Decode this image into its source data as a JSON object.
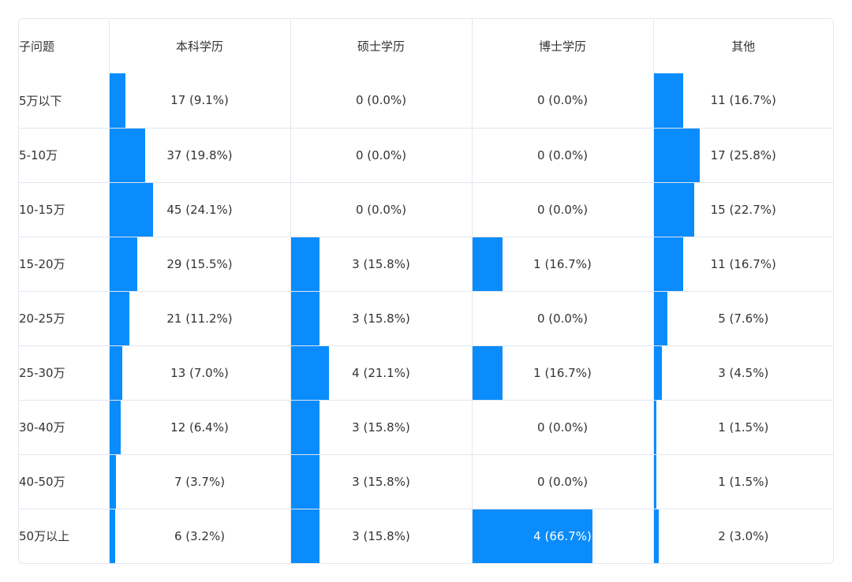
{
  "chart_data": {
    "type": "table",
    "header": {
      "first": "子问题",
      "columns": [
        "本科学历",
        "硕士学历",
        "博士学历",
        "其他"
      ]
    },
    "bar_color": "#0a8cfc",
    "rows": [
      {
        "label": "5万以下",
        "cells": [
          {
            "count": 17,
            "pct": 9.1,
            "text": "17 (9.1%)"
          },
          {
            "count": 0,
            "pct": 0.0,
            "text": "0 (0.0%)"
          },
          {
            "count": 0,
            "pct": 0.0,
            "text": "0 (0.0%)"
          },
          {
            "count": 11,
            "pct": 16.7,
            "text": "11 (16.7%)"
          }
        ]
      },
      {
        "label": "5-10万",
        "cells": [
          {
            "count": 37,
            "pct": 19.8,
            "text": "37 (19.8%)"
          },
          {
            "count": 0,
            "pct": 0.0,
            "text": "0 (0.0%)"
          },
          {
            "count": 0,
            "pct": 0.0,
            "text": "0 (0.0%)"
          },
          {
            "count": 17,
            "pct": 25.8,
            "text": "17 (25.8%)"
          }
        ]
      },
      {
        "label": "10-15万",
        "cells": [
          {
            "count": 45,
            "pct": 24.1,
            "text": "45 (24.1%)"
          },
          {
            "count": 0,
            "pct": 0.0,
            "text": "0 (0.0%)"
          },
          {
            "count": 0,
            "pct": 0.0,
            "text": "0 (0.0%)"
          },
          {
            "count": 15,
            "pct": 22.7,
            "text": "15 (22.7%)"
          }
        ]
      },
      {
        "label": "15-20万",
        "cells": [
          {
            "count": 29,
            "pct": 15.5,
            "text": "29 (15.5%)"
          },
          {
            "count": 3,
            "pct": 15.8,
            "text": "3 (15.8%)"
          },
          {
            "count": 1,
            "pct": 16.7,
            "text": "1 (16.7%)"
          },
          {
            "count": 11,
            "pct": 16.7,
            "text": "11 (16.7%)"
          }
        ]
      },
      {
        "label": "20-25万",
        "cells": [
          {
            "count": 21,
            "pct": 11.2,
            "text": "21 (11.2%)"
          },
          {
            "count": 3,
            "pct": 15.8,
            "text": "3 (15.8%)"
          },
          {
            "count": 0,
            "pct": 0.0,
            "text": "0 (0.0%)"
          },
          {
            "count": 5,
            "pct": 7.6,
            "text": "5 (7.6%)"
          }
        ]
      },
      {
        "label": "25-30万",
        "cells": [
          {
            "count": 13,
            "pct": 7.0,
            "text": "13 (7.0%)"
          },
          {
            "count": 4,
            "pct": 21.1,
            "text": "4 (21.1%)"
          },
          {
            "count": 1,
            "pct": 16.7,
            "text": "1 (16.7%)"
          },
          {
            "count": 3,
            "pct": 4.5,
            "text": "3 (4.5%)"
          }
        ]
      },
      {
        "label": "30-40万",
        "cells": [
          {
            "count": 12,
            "pct": 6.4,
            "text": "12 (6.4%)"
          },
          {
            "count": 3,
            "pct": 15.8,
            "text": "3 (15.8%)"
          },
          {
            "count": 0,
            "pct": 0.0,
            "text": "0 (0.0%)"
          },
          {
            "count": 1,
            "pct": 1.5,
            "text": "1 (1.5%)"
          }
        ]
      },
      {
        "label": "40-50万",
        "cells": [
          {
            "count": 7,
            "pct": 3.7,
            "text": "7 (3.7%)"
          },
          {
            "count": 3,
            "pct": 15.8,
            "text": "3 (15.8%)"
          },
          {
            "count": 0,
            "pct": 0.0,
            "text": "0 (0.0%)"
          },
          {
            "count": 1,
            "pct": 1.5,
            "text": "1 (1.5%)"
          }
        ]
      },
      {
        "label": "50万以上",
        "cells": [
          {
            "count": 6,
            "pct": 3.2,
            "text": "6 (3.2%)"
          },
          {
            "count": 3,
            "pct": 15.8,
            "text": "3 (15.8%)"
          },
          {
            "count": 4,
            "pct": 66.7,
            "text": "4 (66.7%)"
          },
          {
            "count": 2,
            "pct": 3.0,
            "text": "2 (3.0%)"
          }
        ]
      }
    ]
  }
}
